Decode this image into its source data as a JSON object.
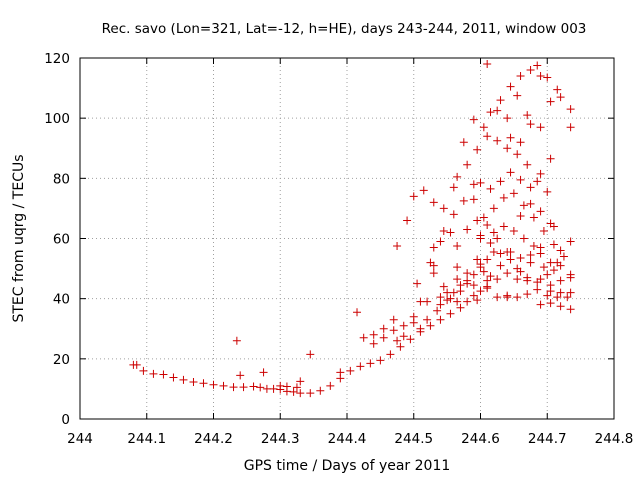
{
  "chart_data": {
    "type": "scatter",
    "title": "Rec. savo (Lon=321, Lat=-12, h=HE), days 243-244, 2011, window 003",
    "xlabel": "GPS time / Days of year 2011",
    "ylabel": "STEC from uqrg / TECUs",
    "xlim": [
      244,
      244.8
    ],
    "ylim": [
      0,
      120
    ],
    "x_ticks": [
      244,
      244.1,
      244.2,
      244.3,
      244.4,
      244.5,
      244.6,
      244.7,
      244.8
    ],
    "x_tick_labels": [
      "244",
      "244.1",
      "244.2",
      "244.3",
      "244.4",
      "244.5",
      "244.6",
      "244.7",
      "244.8"
    ],
    "y_ticks": [
      0,
      20,
      40,
      60,
      80,
      100,
      120
    ],
    "y_tick_labels": [
      "0",
      "20",
      "40",
      "60",
      "80",
      "100",
      "120"
    ],
    "grid": true,
    "marker": "+",
    "color": "#cc0000",
    "series": [
      {
        "points": [
          [
            244.08,
            18
          ],
          [
            244.095,
            16
          ],
          [
            244.11,
            15
          ],
          [
            244.125,
            14.8
          ],
          [
            244.14,
            13.8
          ],
          [
            244.155,
            13
          ],
          [
            244.17,
            12.3
          ],
          [
            244.185,
            11.9
          ],
          [
            244.2,
            11.4
          ],
          [
            244.215,
            11
          ],
          [
            244.23,
            10.6
          ],
          [
            244.245,
            10.6
          ],
          [
            244.26,
            10.8
          ],
          [
            244.27,
            10.5
          ],
          [
            244.28,
            10
          ],
          [
            244.29,
            10
          ],
          [
            244.3,
            9.8
          ],
          [
            244.31,
            9.2
          ],
          [
            244.32,
            9
          ],
          [
            244.33,
            8.6
          ],
          [
            244.345,
            8.6
          ],
          [
            244.36,
            9.4
          ],
          [
            244.375,
            11
          ],
          [
            244.39,
            13.5
          ],
          [
            244.405,
            16
          ],
          [
            244.42,
            17.5
          ],
          [
            244.435,
            18.5
          ],
          [
            244.45,
            19.5
          ],
          [
            244.465,
            21.5
          ],
          [
            244.48,
            24
          ],
          [
            244.495,
            26.5
          ],
          [
            244.51,
            29
          ],
          [
            244.525,
            31
          ],
          [
            244.54,
            33
          ],
          [
            244.555,
            35
          ],
          [
            244.57,
            37
          ],
          [
            244.58,
            39
          ],
          [
            244.59,
            41
          ],
          [
            244.6,
            42.5
          ],
          [
            244.61,
            44
          ],
          [
            244.625,
            40.5
          ],
          [
            244.64,
            40.5
          ],
          [
            244.655,
            40.5
          ],
          [
            244.67,
            41.5
          ],
          [
            244.685,
            43
          ],
          [
            244.7,
            41
          ],
          [
            244.715,
            40.5
          ],
          [
            244.73,
            40.5
          ],
          [
            244.085,
            18
          ],
          [
            244.24,
            14.5
          ],
          [
            244.275,
            15.5
          ],
          [
            244.33,
            12.5
          ],
          [
            244.345,
            21.5
          ],
          [
            244.235,
            26
          ],
          [
            244.3,
            11
          ],
          [
            244.31,
            10.8
          ],
          [
            244.325,
            10.5
          ],
          [
            244.39,
            15.5
          ],
          [
            244.415,
            35.5
          ],
          [
            244.425,
            27
          ],
          [
            244.44,
            28
          ],
          [
            244.44,
            25
          ],
          [
            244.455,
            30
          ],
          [
            244.455,
            27
          ],
          [
            244.47,
            33
          ],
          [
            244.47,
            29.5
          ],
          [
            244.475,
            26
          ],
          [
            244.485,
            31
          ],
          [
            244.485,
            27.5
          ],
          [
            244.5,
            34
          ],
          [
            244.5,
            32
          ],
          [
            244.51,
            30
          ],
          [
            244.52,
            33
          ],
          [
            244.535,
            36
          ],
          [
            244.54,
            38
          ],
          [
            244.55,
            39.5
          ],
          [
            244.56,
            42
          ],
          [
            244.57,
            44.5
          ],
          [
            244.58,
            46
          ],
          [
            244.59,
            48
          ],
          [
            244.6,
            50.5
          ],
          [
            244.61,
            53
          ],
          [
            244.62,
            55.5
          ],
          [
            244.64,
            48.5
          ],
          [
            244.655,
            46.5
          ],
          [
            244.67,
            46
          ],
          [
            244.69,
            46.5
          ],
          [
            244.705,
            44.5
          ],
          [
            244.72,
            46
          ],
          [
            244.735,
            47
          ],
          [
            244.475,
            57.5
          ],
          [
            244.49,
            66
          ],
          [
            244.51,
            39
          ],
          [
            244.525,
            52
          ],
          [
            244.53,
            48.5
          ],
          [
            244.545,
            44
          ],
          [
            244.555,
            40
          ],
          [
            244.565,
            50.5
          ],
          [
            244.58,
            45
          ],
          [
            244.595,
            39.5
          ],
          [
            244.61,
            43.5
          ],
          [
            244.625,
            46.5
          ],
          [
            244.64,
            41
          ],
          [
            244.66,
            49
          ],
          [
            244.675,
            52
          ],
          [
            244.69,
            55
          ],
          [
            244.705,
            52
          ],
          [
            244.72,
            56
          ],
          [
            244.735,
            59
          ],
          [
            244.505,
            45
          ],
          [
            244.52,
            39
          ],
          [
            244.53,
            51
          ],
          [
            244.54,
            59
          ],
          [
            244.555,
            62
          ],
          [
            244.565,
            57.5
          ],
          [
            244.58,
            63
          ],
          [
            244.595,
            66
          ],
          [
            244.61,
            64.5
          ],
          [
            244.625,
            60
          ],
          [
            244.64,
            55.5
          ],
          [
            244.655,
            50
          ],
          [
            244.67,
            47
          ],
          [
            244.685,
            45.5
          ],
          [
            244.7,
            48
          ],
          [
            244.715,
            52
          ],
          [
            244.735,
            48
          ],
          [
            244.53,
            57
          ],
          [
            244.545,
            62.5
          ],
          [
            244.56,
            68
          ],
          [
            244.575,
            72.5
          ],
          [
            244.59,
            73
          ],
          [
            244.605,
            67
          ],
          [
            244.62,
            70
          ],
          [
            244.635,
            73.5
          ],
          [
            244.65,
            75
          ],
          [
            244.665,
            71
          ],
          [
            244.68,
            67
          ],
          [
            244.695,
            62.5
          ],
          [
            244.71,
            58
          ],
          [
            244.725,
            54
          ],
          [
            244.5,
            74
          ],
          [
            244.515,
            76
          ],
          [
            244.53,
            72
          ],
          [
            244.545,
            70
          ],
          [
            244.565,
            80.5
          ],
          [
            244.58,
            84.5
          ],
          [
            244.595,
            89.5
          ],
          [
            244.61,
            94
          ],
          [
            244.625,
            92.5
          ],
          [
            244.64,
            90
          ],
          [
            244.655,
            88
          ],
          [
            244.67,
            84.5
          ],
          [
            244.685,
            79
          ],
          [
            244.7,
            75.5
          ],
          [
            244.71,
            64
          ],
          [
            244.56,
            77
          ],
          [
            244.575,
            92
          ],
          [
            244.59,
            99.5
          ],
          [
            244.605,
            97
          ],
          [
            244.615,
            102
          ],
          [
            244.63,
            106
          ],
          [
            244.645,
            110.5
          ],
          [
            244.66,
            114
          ],
          [
            244.675,
            116
          ],
          [
            244.69,
            114
          ],
          [
            244.705,
            105.5
          ],
          [
            244.72,
            107
          ],
          [
            244.735,
            103
          ],
          [
            244.61,
            118
          ],
          [
            244.625,
            102.5
          ],
          [
            244.64,
            100
          ],
          [
            244.655,
            107.5
          ],
          [
            244.67,
            101
          ],
          [
            244.685,
            117.5
          ],
          [
            244.7,
            113.5
          ],
          [
            244.715,
            109.5
          ],
          [
            244.735,
            97
          ],
          [
            244.59,
            78
          ],
          [
            244.6,
            78.5
          ],
          [
            244.615,
            76.5
          ],
          [
            244.63,
            79
          ],
          [
            244.645,
            82
          ],
          [
            244.66,
            79.5
          ],
          [
            244.675,
            77
          ],
          [
            244.69,
            81.5
          ],
          [
            244.705,
            86.5
          ],
          [
            244.69,
            97
          ],
          [
            244.66,
            92
          ],
          [
            244.645,
            93.5
          ],
          [
            244.675,
            98
          ],
          [
            244.6,
            61
          ],
          [
            244.615,
            58.5
          ],
          [
            244.63,
            55
          ],
          [
            244.645,
            55.5
          ],
          [
            244.66,
            67.5
          ],
          [
            244.675,
            71.5
          ],
          [
            244.69,
            69
          ],
          [
            244.705,
            65
          ],
          [
            244.72,
            51
          ],
          [
            244.59,
            44.5
          ],
          [
            244.605,
            49
          ],
          [
            244.615,
            47.5
          ],
          [
            244.63,
            51
          ],
          [
            244.645,
            53
          ],
          [
            244.66,
            53.5
          ],
          [
            244.675,
            54.5
          ],
          [
            244.69,
            57
          ],
          [
            244.705,
            42.5
          ],
          [
            244.72,
            42
          ],
          [
            244.735,
            42
          ],
          [
            244.735,
            36.5
          ],
          [
            244.72,
            37.5
          ],
          [
            244.705,
            38.5
          ],
          [
            244.69,
            38
          ],
          [
            244.6,
            60
          ],
          [
            244.62,
            62
          ],
          [
            244.635,
            64
          ],
          [
            244.65,
            62.5
          ],
          [
            244.665,
            60
          ],
          [
            244.68,
            57.5
          ],
          [
            244.695,
            50.5
          ],
          [
            244.71,
            49.5
          ],
          [
            244.54,
            40.5
          ],
          [
            244.55,
            42
          ],
          [
            244.565,
            39
          ],
          [
            244.57,
            42.5
          ],
          [
            244.58,
            48.5
          ],
          [
            244.595,
            53
          ],
          [
            244.61,
            46
          ],
          [
            244.6,
            51.5
          ],
          [
            244.565,
            46.5
          ]
        ]
      }
    ]
  }
}
